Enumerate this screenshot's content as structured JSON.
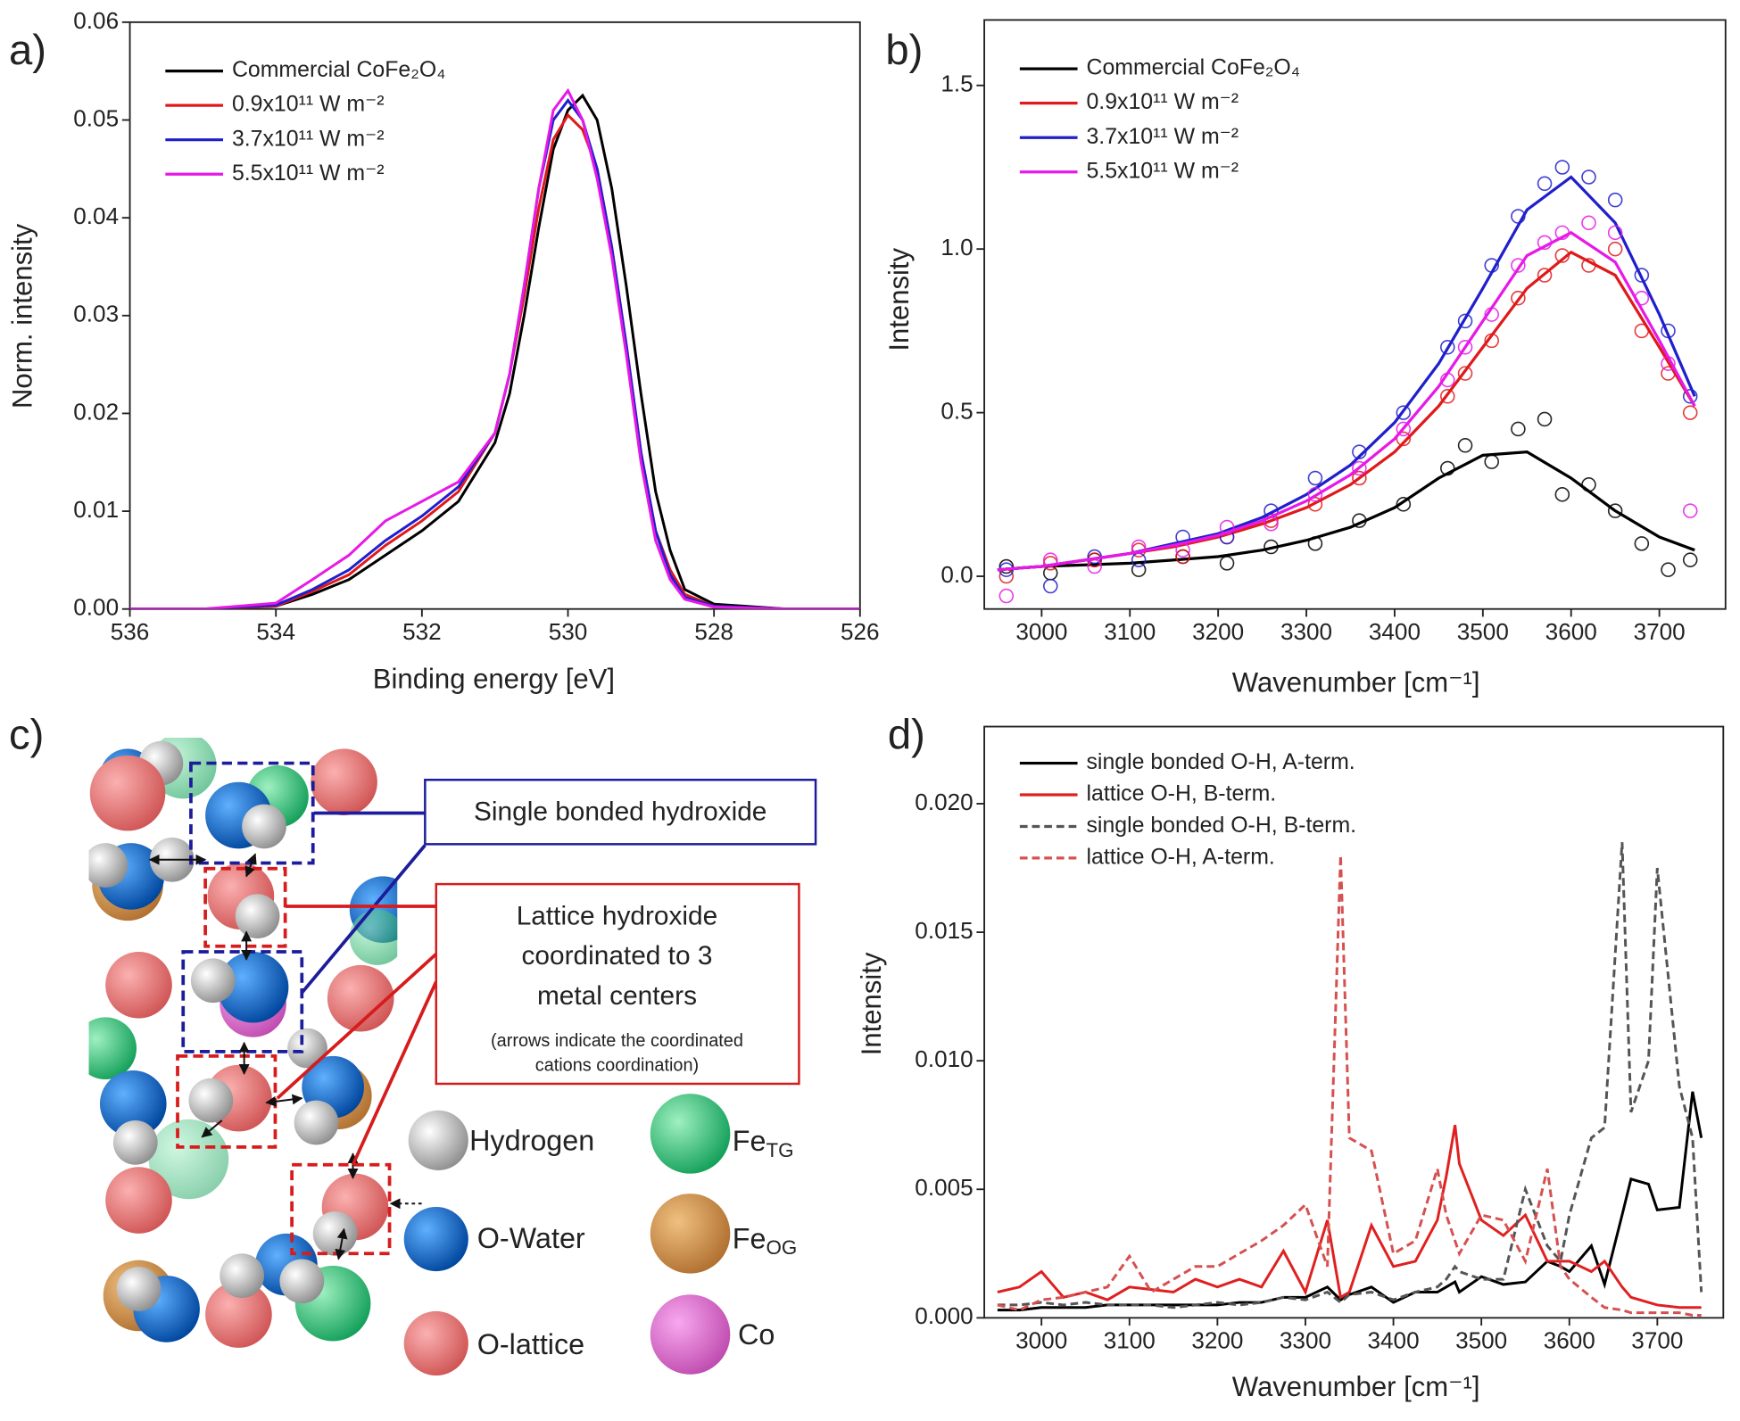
{
  "chart_data": [
    {
      "type": "line",
      "panel_label": "a)",
      "x_label": "Binding energy [eV]",
      "y_label": "Norm. intensity",
      "xlim": [
        536,
        526
      ],
      "xticks": [
        536,
        534,
        532,
        530,
        528,
        526
      ],
      "ylim": [
        0,
        0.06
      ],
      "yticks": [
        {
          "value": 0,
          "label": "0.00"
        },
        {
          "value": 0.01,
          "label": "0.01"
        },
        {
          "value": 0.02,
          "label": "0.02"
        },
        {
          "value": 0.03,
          "label": "0.03"
        },
        {
          "value": 0.04,
          "label": "0.04"
        },
        {
          "value": 0.05,
          "label": "0.05"
        },
        {
          "value": 0.06,
          "label": "0.06"
        }
      ],
      "legend": "upper left",
      "x": [
        536,
        535,
        534,
        533.5,
        533,
        532.5,
        532,
        531.5,
        531,
        530.8,
        530.6,
        530.4,
        530.2,
        530,
        529.8,
        529.6,
        529.4,
        529.2,
        529,
        528.8,
        528.6,
        528.4,
        528,
        527,
        526
      ],
      "series": [
        {
          "name": "Commercial CoFe₂O₄",
          "color": "#000000",
          "values": [
            0,
            0,
            0.0003,
            0.0015,
            0.003,
            0.0055,
            0.008,
            0.011,
            0.017,
            0.022,
            0.03,
            0.039,
            0.047,
            0.051,
            0.0525,
            0.05,
            0.043,
            0.033,
            0.022,
            0.012,
            0.006,
            0.002,
            0.0005,
            0,
            0
          ]
        },
        {
          "name": "0.9x10¹¹ W m⁻²",
          "color": "#e0191b",
          "values": [
            0,
            0,
            0.0003,
            0.0018,
            0.0035,
            0.0065,
            0.009,
            0.012,
            0.018,
            0.024,
            0.032,
            0.041,
            0.048,
            0.0505,
            0.049,
            0.045,
            0.037,
            0.027,
            0.016,
            0.008,
            0.004,
            0.0015,
            0.0003,
            0,
            0
          ]
        },
        {
          "name": "3.7x10¹¹ W m⁻²",
          "color": "#1f1fcc",
          "values": [
            0,
            0,
            0.0004,
            0.002,
            0.004,
            0.007,
            0.0095,
            0.0125,
            0.018,
            0.024,
            0.033,
            0.043,
            0.05,
            0.052,
            0.05,
            0.045,
            0.037,
            0.027,
            0.016,
            0.008,
            0.0035,
            0.0012,
            0.0003,
            0,
            0
          ]
        },
        {
          "name": "5.5x10¹¹ W m⁻²",
          "color": "#e619e6",
          "values": [
            0,
            0,
            0.0006,
            0.003,
            0.0055,
            0.009,
            0.011,
            0.013,
            0.018,
            0.024,
            0.033,
            0.043,
            0.051,
            0.053,
            0.05,
            0.044,
            0.036,
            0.026,
            0.015,
            0.007,
            0.003,
            0.001,
            0.0002,
            0,
            0
          ]
        }
      ]
    },
    {
      "type": "scatter",
      "panel_label": "b)",
      "x_label": "Wavenumber [cm⁻¹]",
      "y_label": "Intensity",
      "xlim": [
        2935,
        3775
      ],
      "xticks": [
        3000,
        3100,
        3200,
        3300,
        3400,
        3500,
        3600,
        3700
      ],
      "ylim": [
        -0.1,
        1.7
      ],
      "yticks": [
        {
          "value": 0,
          "label": "0.0"
        },
        0.5,
        {
          "value": 1,
          "label": "1.0"
        },
        1.5
      ],
      "legend": "upper left",
      "x": [
        2950,
        3000,
        3050,
        3100,
        3150,
        3200,
        3250,
        3300,
        3350,
        3400,
        3450,
        3500,
        3550,
        3600,
        3650,
        3700,
        3740
      ],
      "point_x": [
        2960,
        3010,
        3060,
        3110,
        3160,
        3210,
        3260,
        3310,
        3360,
        3410,
        3460,
        3480,
        3510,
        3540,
        3570,
        3590,
        3620,
        3650,
        3680,
        3710,
        3735
      ],
      "series": [
        {
          "name": "Commercial CoFe₂O₄",
          "color": "#000000",
          "values": [
            0.02,
            0.03,
            0.035,
            0.04,
            0.05,
            0.06,
            0.08,
            0.11,
            0.15,
            0.21,
            0.3,
            0.37,
            0.38,
            0.3,
            0.2,
            0.12,
            0.08
          ],
          "points": [
            0.03,
            0.01,
            0.05,
            0.02,
            0.06,
            0.04,
            0.09,
            0.1,
            0.17,
            0.22,
            0.33,
            0.4,
            0.35,
            0.45,
            0.48,
            0.25,
            0.28,
            0.2,
            0.1,
            0.02,
            0.05
          ]
        },
        {
          "name": "0.9x10¹¹ W m⁻²",
          "color": "#e0191b",
          "values": [
            0.02,
            0.03,
            0.05,
            0.07,
            0.09,
            0.12,
            0.16,
            0.21,
            0.28,
            0.38,
            0.52,
            0.7,
            0.88,
            0.99,
            0.92,
            0.7,
            0.52
          ],
          "points": [
            0,
            0.04,
            0.05,
            0.08,
            0.06,
            0.12,
            0.17,
            0.22,
            0.3,
            0.42,
            0.55,
            0.62,
            0.72,
            0.85,
            0.92,
            0.98,
            0.95,
            1,
            0.75,
            0.62,
            0.5
          ]
        },
        {
          "name": "3.7x10¹¹ W m⁻²",
          "color": "#1f1fcc",
          "values": [
            0.02,
            0.03,
            0.05,
            0.07,
            0.1,
            0.13,
            0.18,
            0.25,
            0.34,
            0.47,
            0.65,
            0.88,
            1.12,
            1.22,
            1.08,
            0.8,
            0.55
          ],
          "points": [
            0.02,
            -0.03,
            0.06,
            0.05,
            0.12,
            0.12,
            0.2,
            0.3,
            0.38,
            0.5,
            0.7,
            0.78,
            0.95,
            1.1,
            1.2,
            1.25,
            1.22,
            1.15,
            0.92,
            0.75,
            0.55
          ]
        },
        {
          "name": "5.5x10¹¹ W m⁻²",
          "color": "#e619e6",
          "values": [
            0.02,
            0.03,
            0.05,
            0.07,
            0.095,
            0.125,
            0.17,
            0.23,
            0.31,
            0.42,
            0.58,
            0.78,
            0.98,
            1.05,
            0.96,
            0.72,
            0.52
          ],
          "points": [
            -0.06,
            0.05,
            0.03,
            0.09,
            0.08,
            0.15,
            0.16,
            0.25,
            0.33,
            0.45,
            0.6,
            0.7,
            0.8,
            0.95,
            1.02,
            1.05,
            1.08,
            1.05,
            0.85,
            0.65,
            0.2
          ]
        }
      ]
    },
    {
      "type": "line",
      "panel_label": "d)",
      "x_label": "Wavenumber [cm⁻¹]",
      "y_label": "Intensity",
      "xlim": [
        2935,
        3775
      ],
      "xticks": [
        3000,
        3100,
        3200,
        3300,
        3400,
        3500,
        3600,
        3700
      ],
      "ylim": [
        0,
        0.023
      ],
      "yticks": [
        {
          "value": 0,
          "label": "0.000"
        },
        {
          "value": 0.005,
          "label": "0.005"
        },
        {
          "value": 0.01,
          "label": "0.010"
        },
        {
          "value": 0.015,
          "label": "0.015"
        },
        {
          "value": 0.02,
          "label": "0.020"
        }
      ],
      "legend": "upper left",
      "x": [
        2950,
        2975,
        3000,
        3025,
        3050,
        3075,
        3100,
        3125,
        3150,
        3175,
        3200,
        3225,
        3250,
        3275,
        3300,
        3325,
        3340,
        3350,
        3375,
        3400,
        3425,
        3450,
        3460,
        3470,
        3475,
        3500,
        3525,
        3550,
        3575,
        3590,
        3600,
        3625,
        3640,
        3660,
        3670,
        3690,
        3700,
        3725,
        3740,
        3750
      ],
      "series": [
        {
          "name": "single bonded O-H, A-term.",
          "color": "#000000",
          "dashed": false,
          "values": [
            0.0003,
            0.0003,
            0.0004,
            0.0004,
            0.0004,
            0.0005,
            0.0005,
            0.0005,
            0.0005,
            0.0005,
            0.0005,
            0.0006,
            0.0006,
            0.0008,
            0.0008,
            0.0012,
            0.0007,
            0.0009,
            0.0012,
            0.0006,
            0.001,
            0.001,
            0.0012,
            0.0014,
            0.001,
            0.0016,
            0.0013,
            0.0014,
            0.0022,
            0.002,
            0.0018,
            0.0028,
            0.0013,
            0.004,
            0.0054,
            0.0052,
            0.0042,
            0.0043,
            0.0088,
            0.007
          ]
        },
        {
          "name": "lattice O-H, B-term.",
          "color": "#e02020",
          "dashed": false,
          "values": [
            0.001,
            0.0012,
            0.0018,
            0.0008,
            0.001,
            0.0007,
            0.0012,
            0.0011,
            0.001,
            0.0015,
            0.0012,
            0.0015,
            0.0012,
            0.0026,
            0.001,
            0.0038,
            0.0008,
            0.001,
            0.0036,
            0.002,
            0.0022,
            0.0038,
            0.0055,
            0.0075,
            0.006,
            0.0038,
            0.0032,
            0.004,
            0.0022,
            0.0022,
            0.0022,
            0.0018,
            0.0022,
            0.0012,
            0.0008,
            0.0006,
            0.0005,
            0.0004,
            0.0004,
            0.0004
          ]
        },
        {
          "name": "single bonded O-H, B-term.",
          "color": "#555555",
          "dashed": true,
          "values": [
            0.0005,
            0.0005,
            0.0006,
            0.0005,
            0.0006,
            0.0005,
            0.0005,
            0.0005,
            0.0004,
            0.0005,
            0.0006,
            0.0005,
            0.0006,
            0.0008,
            0.0007,
            0.001,
            0.0006,
            0.0009,
            0.001,
            0.0007,
            0.001,
            0.0012,
            0.0015,
            0.002,
            0.0018,
            0.0015,
            0.0015,
            0.005,
            0.0028,
            0.0022,
            0.004,
            0.007,
            0.0074,
            0.0185,
            0.008,
            0.01,
            0.0175,
            0.009,
            0.007,
            0.001
          ]
        },
        {
          "name": "lattice O-H, A-term.",
          "color": "#d65050",
          "dashed": true,
          "values": [
            0.0005,
            0.0003,
            0.0007,
            0.0008,
            0.001,
            0.0012,
            0.0024,
            0.001,
            0.0015,
            0.002,
            0.002,
            0.0025,
            0.003,
            0.0036,
            0.0044,
            0.002,
            0.018,
            0.007,
            0.0065,
            0.0025,
            0.003,
            0.0058,
            0.004,
            0.003,
            0.0025,
            0.004,
            0.0038,
            0.0022,
            0.0058,
            0.002,
            0.0015,
            0.0008,
            0.0004,
            0.0003,
            0.0002,
            0.0002,
            0.0002,
            0.0002,
            0.0001,
            0.0001
          ]
        }
      ]
    }
  ],
  "diagram": {
    "panel_label": "c)",
    "single_callout": "Single bonded hydroxide",
    "lattice_callout": [
      "Lattice hydroxide",
      "coordinated to 3",
      "metal centers"
    ],
    "lattice_note": [
      "(arrows indicate the coordinated",
      "cations coordination)"
    ],
    "legend": [
      {
        "label": "Hydrogen"
      },
      {
        "label": "O-Water"
      },
      {
        "label": "O-lattice"
      },
      {
        "label": "Fe",
        "subscript": "TG"
      },
      {
        "label": "Fe",
        "subscript": "OG"
      },
      {
        "label": "Co"
      }
    ]
  }
}
